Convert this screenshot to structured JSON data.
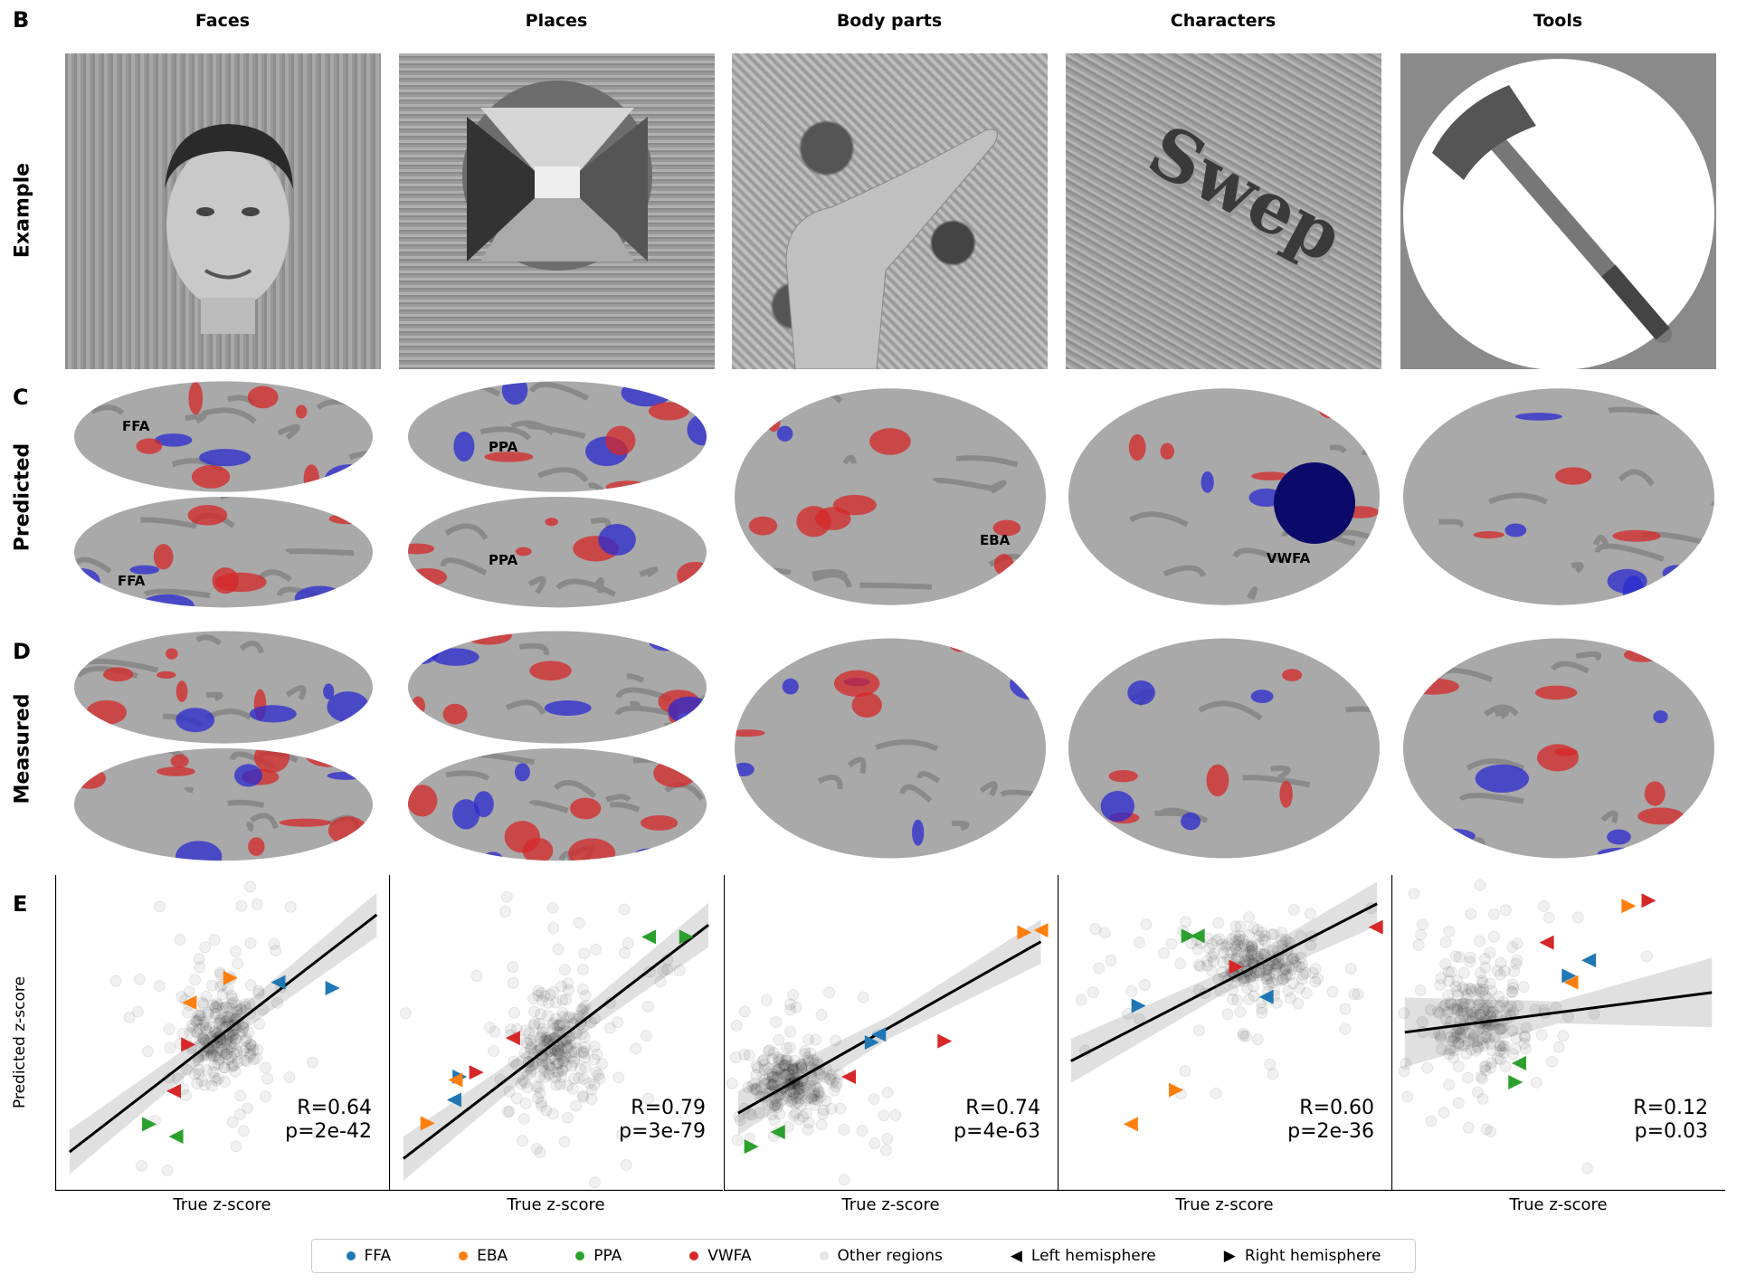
{
  "panel_letters": {
    "b": "B",
    "c": "C",
    "d": "D",
    "e": "E"
  },
  "columns": [
    "Faces",
    "Places",
    "Body parts",
    "Characters",
    "Tools"
  ],
  "row_labels": {
    "example": "Example",
    "predicted": "Predicted",
    "measured": "Measured"
  },
  "example_images": {
    "characters_word": "Swep"
  },
  "roi_labels": {
    "faces_top": "FFA",
    "faces_bottom": "FFA",
    "places_top": "PPA",
    "places_bottom": "PPA",
    "body": "EBA",
    "characters": "VWFA"
  },
  "colors": {
    "FFA": "#1f77b4",
    "EBA": "#ff7f0e",
    "PPA": "#2ca02c",
    "VWFA": "#d62728",
    "other": "#d9d9d9",
    "activation_positive": "#d62728",
    "activation_negative": "#2a2ad0"
  },
  "legend": [
    {
      "label": "FFA",
      "marker": "dot",
      "color": "#1f77b4"
    },
    {
      "label": "EBA",
      "marker": "dot",
      "color": "#ff7f0e"
    },
    {
      "label": "PPA",
      "marker": "dot",
      "color": "#2ca02c"
    },
    {
      "label": "VWFA",
      "marker": "dot",
      "color": "#d62728"
    },
    {
      "label": "Other regions",
      "marker": "dot",
      "color": "#e6e6e6"
    },
    {
      "label": "Left hemisphere",
      "marker": "triangle-left",
      "color": "#000000"
    },
    {
      "label": "Right hemisphere",
      "marker": "triangle-right",
      "color": "#000000"
    }
  ],
  "chart_data": [
    {
      "type": "scatter",
      "title": "Faces",
      "xlabel": "True z-score",
      "ylabel": "Predicted z-score",
      "xlim": [
        0,
        10
      ],
      "ylim": [
        0,
        10
      ],
      "grid": false,
      "R": "R=0.64",
      "p": "p=2e-42",
      "fit_line": [
        [
          0.43,
          1.23
        ],
        [
          9.63,
          8.74
        ]
      ],
      "roi_points": [
        {
          "roi": "EBA",
          "hemi": "right",
          "x": 5.25,
          "y": 6.74
        },
        {
          "roi": "EBA",
          "hemi": "left",
          "x": 4.02,
          "y": 5.96
        },
        {
          "roi": "FFA",
          "hemi": "left",
          "x": 6.68,
          "y": 6.6
        },
        {
          "roi": "FFA",
          "hemi": "right",
          "x": 8.31,
          "y": 6.42
        },
        {
          "roi": "VWFA",
          "hemi": "right",
          "x": 3.99,
          "y": 4.63
        },
        {
          "roi": "VWFA",
          "hemi": "left",
          "x": 3.55,
          "y": 3.16
        },
        {
          "roi": "PPA",
          "hemi": "right",
          "x": 2.82,
          "y": 2.11
        },
        {
          "roi": "PPA",
          "hemi": "left",
          "x": 3.62,
          "y": 1.72
        }
      ]
    },
    {
      "type": "scatter",
      "title": "Places",
      "xlabel": "True z-score",
      "xlim": [
        0,
        10
      ],
      "ylim": [
        0,
        10
      ],
      "grid": false,
      "R": "R=0.79",
      "p": "p=3e-79",
      "fit_line": [
        [
          0.43,
          1.02
        ],
        [
          9.57,
          8.42
        ]
      ],
      "roi_points": [
        {
          "roi": "PPA",
          "hemi": "left",
          "x": 7.78,
          "y": 8.04
        },
        {
          "roi": "PPA",
          "hemi": "right",
          "x": 8.91,
          "y": 8.04
        },
        {
          "roi": "VWFA",
          "hemi": "left",
          "x": 3.71,
          "y": 4.84
        },
        {
          "roi": "VWFA",
          "hemi": "right",
          "x": 2.62,
          "y": 3.75
        },
        {
          "roi": "FFA",
          "hemi": "right",
          "x": 2.12,
          "y": 3.61
        },
        {
          "roi": "FFA",
          "hemi": "left",
          "x": 1.95,
          "y": 2.88
        },
        {
          "roi": "EBA",
          "hemi": "left",
          "x": 1.99,
          "y": 3.51
        },
        {
          "roi": "EBA",
          "hemi": "right",
          "x": 1.16,
          "y": 2.14
        }
      ]
    },
    {
      "type": "scatter",
      "title": "Body parts",
      "xlabel": "True z-score",
      "xlim": [
        0,
        10
      ],
      "ylim": [
        0,
        10
      ],
      "grid": false,
      "R": "R=0.74",
      "p": "p=4e-63",
      "fit_line": [
        [
          0.43,
          2.46
        ],
        [
          9.5,
          7.89
        ]
      ],
      "roi_points": [
        {
          "roi": "EBA",
          "hemi": "right",
          "x": 9.01,
          "y": 8.18
        },
        {
          "roi": "EBA",
          "hemi": "left",
          "x": 9.5,
          "y": 8.25
        },
        {
          "roi": "FFA",
          "hemi": "left",
          "x": 4.64,
          "y": 4.95
        },
        {
          "roi": "FFA",
          "hemi": "right",
          "x": 4.44,
          "y": 4.7
        },
        {
          "roi": "VWFA",
          "hemi": "right",
          "x": 6.62,
          "y": 4.74
        },
        {
          "roi": "VWFA",
          "hemi": "left",
          "x": 3.74,
          "y": 3.61
        },
        {
          "roi": "PPA",
          "hemi": "left",
          "x": 1.62,
          "y": 1.86
        },
        {
          "roi": "PPA",
          "hemi": "right",
          "x": 0.83,
          "y": 1.4
        }
      ]
    },
    {
      "type": "scatter",
      "title": "Characters",
      "xlabel": "True z-score",
      "xlim": [
        0,
        10
      ],
      "ylim": [
        0,
        10
      ],
      "grid": false,
      "R": "R=0.60",
      "p": "p=2e-36",
      "fit_line": [
        [
          0.4,
          4.11
        ],
        [
          9.57,
          9.09
        ]
      ],
      "roi_points": [
        {
          "roi": "PPA",
          "hemi": "left",
          "x": 4.19,
          "y": 8.07
        },
        {
          "roi": "PPA",
          "hemi": "right",
          "x": 3.92,
          "y": 8.07
        },
        {
          "roi": "VWFA",
          "hemi": "right",
          "x": 5.35,
          "y": 7.09
        },
        {
          "roi": "VWFA",
          "hemi": "left",
          "x": 9.53,
          "y": 8.35
        },
        {
          "roi": "FFA",
          "hemi": "right",
          "x": 2.43,
          "y": 5.86
        },
        {
          "roi": "FFA",
          "hemi": "left",
          "x": 6.25,
          "y": 6.14
        },
        {
          "roi": "EBA",
          "hemi": "right",
          "x": 3.55,
          "y": 3.19
        },
        {
          "roi": "EBA",
          "hemi": "left",
          "x": 2.19,
          "y": 2.11
        }
      ]
    },
    {
      "type": "scatter",
      "title": "Tools",
      "xlabel": "True z-score",
      "xlim": [
        0,
        10
      ],
      "ylim": [
        0,
        10
      ],
      "grid": false,
      "R": "R=0.12",
      "p": "p=0.03",
      "fit_line": [
        [
          0.4,
          5.02
        ],
        [
          9.6,
          6.28
        ]
      ],
      "roi_points": [
        {
          "roi": "EBA",
          "hemi": "right",
          "x": 7.11,
          "y": 9.02
        },
        {
          "roi": "VWFA",
          "hemi": "right",
          "x": 7.71,
          "y": 9.19
        },
        {
          "roi": "VWFA",
          "hemi": "left",
          "x": 4.65,
          "y": 7.86
        },
        {
          "roi": "FFA",
          "hemi": "left",
          "x": 5.91,
          "y": 7.3
        },
        {
          "roi": "FFA",
          "hemi": "right",
          "x": 5.32,
          "y": 6.81
        },
        {
          "roi": "EBA",
          "hemi": "left",
          "x": 5.38,
          "y": 6.6
        },
        {
          "roi": "PPA",
          "hemi": "left",
          "x": 3.82,
          "y": 4.04
        },
        {
          "roi": "PPA",
          "hemi": "right",
          "x": 3.72,
          "y": 3.44
        }
      ]
    }
  ]
}
